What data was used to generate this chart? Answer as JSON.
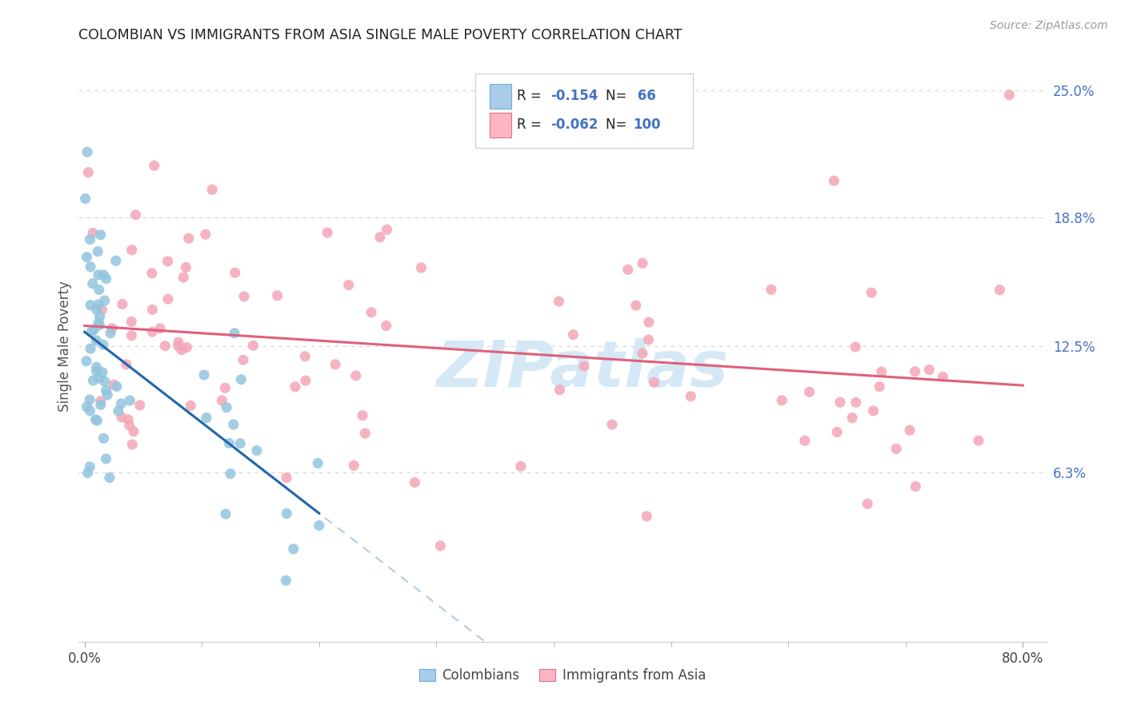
{
  "title": "COLOMBIAN VS IMMIGRANTS FROM ASIA SINGLE MALE POVERTY CORRELATION CHART",
  "source": "Source: ZipAtlas.com",
  "ylabel": "Single Male Poverty",
  "xlim": [
    -0.005,
    0.82
  ],
  "ylim": [
    -0.02,
    0.27
  ],
  "ytick_labels_right": [
    "25.0%",
    "18.8%",
    "12.5%",
    "6.3%"
  ],
  "ytick_vals_right": [
    0.25,
    0.188,
    0.125,
    0.063
  ],
  "color_colombian": "#92c5de",
  "color_asian": "#f4a6b8",
  "color_trendline_colombian": "#2166ac",
  "color_trendline_asian": "#e0607a",
  "color_trendline_dash": "#b8cfe0",
  "watermark_color": "#d4e8f5",
  "background_color": "#ffffff",
  "grid_color": "#d8d8d8",
  "legend_r1": "-0.154",
  "legend_n1": "66",
  "legend_r2": "-0.062",
  "legend_n2": "100",
  "r_color": "#4472c4"
}
